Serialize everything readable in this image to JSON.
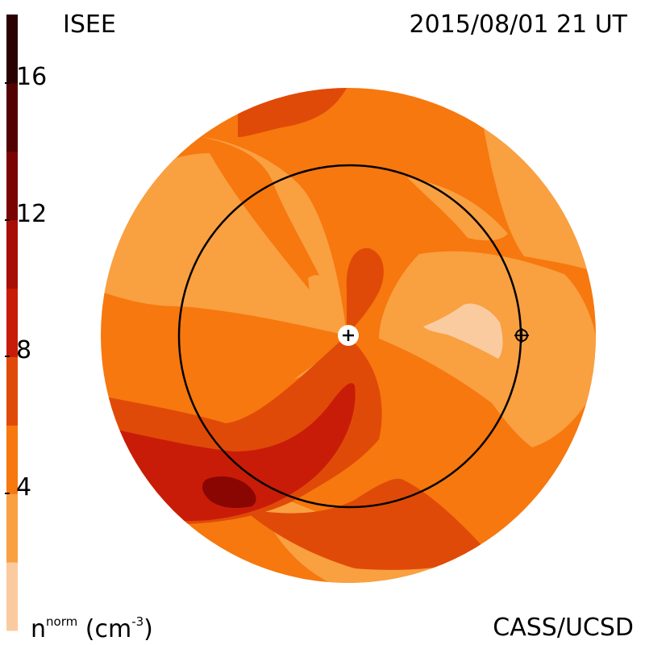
{
  "header": {
    "title_left": "ISEE",
    "title_right": "2015/08/01 21 UT"
  },
  "footer": {
    "credit": "CASS/UCSD",
    "unit_base": "n",
    "unit_sup": "norm",
    "unit_open": " (cm",
    "unit_exp": "-3",
    "unit_close": ")"
  },
  "colorbar": {
    "ticks": [
      {
        "label": "16",
        "value": 16
      },
      {
        "label": "12",
        "value": 12
      },
      {
        "label": "8",
        "value": 8
      },
      {
        "label": "4",
        "value": 4
      }
    ],
    "levels": [
      {
        "from": 0,
        "to": 2,
        "color": "#fbcba0"
      },
      {
        "from": 2,
        "to": 4,
        "color": "#f9a040"
      },
      {
        "from": 4,
        "to": 6,
        "color": "#f6780e"
      },
      {
        "from": 6,
        "to": 8,
        "color": "#e04a08"
      },
      {
        "from": 8,
        "to": 10,
        "color": "#c81c08"
      },
      {
        "from": 10,
        "to": 12,
        "color": "#a80e05"
      },
      {
        "from": 12,
        "to": 14,
        "color": "#7a0402"
      },
      {
        "from": 14,
        "to": 16,
        "color": "#520200"
      },
      {
        "from": 16,
        "to": 18,
        "color": "#2a0000"
      }
    ]
  },
  "map": {
    "markers": {
      "sun": "sun-plus-icon",
      "earth": "earth-circle-cross-icon"
    }
  }
}
